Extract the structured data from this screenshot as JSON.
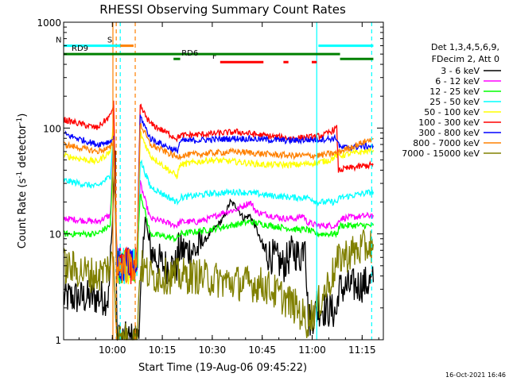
{
  "chart_data": {
    "type": "line",
    "title": "RHESSI Observing Summary Count Rates",
    "xlabel": "Start Time (19-Aug-06 09:45:22)",
    "ylabel_main": "Count Rate (s",
    "ylabel_sup1": "-1",
    "ylabel_mid": " detector",
    "ylabel_sup2": "-1",
    "ylabel_end": ")",
    "x_axis": {
      "start": "09:45:22",
      "range_minutes": [
        0,
        96
      ],
      "tick_minutes": [
        14.63,
        29.63,
        44.63,
        59.63,
        74.63,
        89.63
      ],
      "tick_labels": [
        "10:00",
        "10:15",
        "10:30",
        "10:45",
        "11:00",
        "11:15"
      ]
    },
    "y_axis": {
      "scale": "log",
      "ylim": [
        1,
        1000
      ],
      "tick_values": [
        1,
        10,
        100,
        1000
      ],
      "tick_labels": [
        "1",
        "10",
        "100",
        "1000"
      ]
    },
    "legend": {
      "placement": "right",
      "header1": "Det 1,3,4,5,6,9,",
      "header2": "FDecim 2, Att 0",
      "entries": [
        "3 - 6 keV",
        "6 - 12 keV",
        "12 - 25 keV",
        "25 - 50 keV",
        "50 - 100 keV",
        "100 - 300 keV",
        "300 - 800 keV",
        "800 - 7000 keV",
        "7000 - 15000 keV"
      ]
    },
    "series": [
      {
        "name": "3 - 6 keV",
        "color": "#000000",
        "points": [
          [
            0,
            2.5
          ],
          [
            12,
            2.5
          ],
          [
            13.5,
            2.5
          ],
          [
            14.5,
            10
          ],
          [
            15.5,
            60
          ],
          [
            16,
            1
          ],
          [
            22,
            1
          ],
          [
            23,
            2
          ],
          [
            24.5,
            15
          ],
          [
            26,
            7
          ],
          [
            30,
            5
          ],
          [
            34,
            5
          ],
          [
            34.5,
            7
          ],
          [
            36,
            7
          ],
          [
            40,
            7
          ],
          [
            44,
            10
          ],
          [
            48,
            14
          ],
          [
            50,
            20
          ],
          [
            52,
            18
          ],
          [
            54,
            14
          ],
          [
            56,
            15
          ],
          [
            58,
            11
          ],
          [
            60,
            7
          ],
          [
            63,
            6
          ],
          [
            66,
            5
          ],
          [
            69,
            7
          ],
          [
            71,
            6
          ],
          [
            72.5,
            9
          ],
          [
            73.5,
            1.5
          ],
          [
            77,
            2
          ],
          [
            82,
            1.8
          ],
          [
            82.5,
            3
          ],
          [
            93,
            3.5
          ]
        ]
      },
      {
        "name": "6 - 12 keV",
        "color": "#ff00ff",
        "points": [
          [
            0,
            14
          ],
          [
            10,
            13
          ],
          [
            14,
            15
          ],
          [
            15,
            70
          ],
          [
            16,
            5
          ],
          [
            22,
            5
          ],
          [
            23,
            30
          ],
          [
            26,
            14
          ],
          [
            30,
            13
          ],
          [
            34,
            12
          ],
          [
            35,
            13
          ],
          [
            40,
            13
          ],
          [
            44,
            14
          ],
          [
            48,
            16
          ],
          [
            52,
            17
          ],
          [
            56,
            20
          ],
          [
            58,
            16
          ],
          [
            62,
            15
          ],
          [
            66,
            14
          ],
          [
            70,
            14
          ],
          [
            72,
            15
          ],
          [
            73,
            13
          ],
          [
            76,
            12
          ],
          [
            82,
            12
          ],
          [
            83,
            14
          ],
          [
            93,
            15
          ]
        ]
      },
      {
        "name": "12 - 25 keV",
        "color": "#00ff00",
        "points": [
          [
            0,
            10
          ],
          [
            10,
            10
          ],
          [
            14,
            12
          ],
          [
            15,
            60
          ],
          [
            16,
            5
          ],
          [
            22,
            5
          ],
          [
            23,
            25
          ],
          [
            26,
            10
          ],
          [
            34,
            9
          ],
          [
            35,
            10
          ],
          [
            44,
            11
          ],
          [
            50,
            12
          ],
          [
            56,
            13
          ],
          [
            62,
            12
          ],
          [
            70,
            11
          ],
          [
            73,
            11
          ],
          [
            76,
            10
          ],
          [
            82,
            10
          ],
          [
            83,
            12
          ],
          [
            93,
            12
          ]
        ]
      },
      {
        "name": "25 - 50 keV",
        "color": "#00ffff",
        "points": [
          [
            0,
            32
          ],
          [
            10,
            28
          ],
          [
            14,
            35
          ],
          [
            15,
            90
          ],
          [
            16,
            5
          ],
          [
            22,
            5
          ],
          [
            23,
            50
          ],
          [
            26,
            28
          ],
          [
            34,
            20
          ],
          [
            35,
            22
          ],
          [
            44,
            24
          ],
          [
            52,
            25
          ],
          [
            58,
            24
          ],
          [
            62,
            23
          ],
          [
            70,
            22
          ],
          [
            74,
            22
          ],
          [
            76,
            20
          ],
          [
            82,
            20
          ],
          [
            83,
            22
          ],
          [
            93,
            25
          ]
        ]
      },
      {
        "name": "50 - 100 keV",
        "color": "#ffff00",
        "points": [
          [
            0,
            55
          ],
          [
            10,
            48
          ],
          [
            14,
            60
          ],
          [
            15,
            110
          ],
          [
            16,
            5
          ],
          [
            22,
            5
          ],
          [
            23,
            90
          ],
          [
            26,
            55
          ],
          [
            34,
            35
          ],
          [
            35,
            45
          ],
          [
            44,
            50
          ],
          [
            52,
            48
          ],
          [
            60,
            45
          ],
          [
            70,
            45
          ],
          [
            76,
            47
          ],
          [
            80,
            50
          ],
          [
            82,
            55
          ],
          [
            83,
            55
          ],
          [
            93,
            62
          ]
        ]
      },
      {
        "name": "100 - 300 keV",
        "color": "#ff0000",
        "points": [
          [
            0,
            120
          ],
          [
            10,
            100
          ],
          [
            14,
            130
          ],
          [
            15,
            170
          ],
          [
            16,
            5
          ],
          [
            22,
            5
          ],
          [
            23,
            160
          ],
          [
            26,
            110
          ],
          [
            34,
            80
          ],
          [
            35,
            85
          ],
          [
            44,
            88
          ],
          [
            52,
            92
          ],
          [
            60,
            85
          ],
          [
            68,
            80
          ],
          [
            74,
            82
          ],
          [
            78,
            85
          ],
          [
            82,
            100
          ],
          [
            82.5,
            40
          ],
          [
            86,
            42
          ],
          [
            93,
            45
          ]
        ]
      },
      {
        "name": "300 - 800 keV",
        "color": "#0000ff",
        "points": [
          [
            0,
            88
          ],
          [
            10,
            70
          ],
          [
            14,
            75
          ],
          [
            15,
            80
          ],
          [
            16,
            5
          ],
          [
            22,
            5
          ],
          [
            23,
            130
          ],
          [
            26,
            80
          ],
          [
            34,
            60
          ],
          [
            35,
            75
          ],
          [
            44,
            78
          ],
          [
            52,
            80
          ],
          [
            60,
            78
          ],
          [
            68,
            76
          ],
          [
            76,
            78
          ],
          [
            82,
            80
          ],
          [
            83,
            65
          ],
          [
            93,
            68
          ]
        ]
      },
      {
        "name": "800 - 7000 keV",
        "color": "#ff8000",
        "points": [
          [
            0,
            70
          ],
          [
            10,
            60
          ],
          [
            14,
            65
          ],
          [
            15,
            75
          ],
          [
            16,
            5
          ],
          [
            22,
            5
          ],
          [
            23,
            110
          ],
          [
            26,
            70
          ],
          [
            34,
            53
          ],
          [
            35,
            55
          ],
          [
            44,
            58
          ],
          [
            52,
            60
          ],
          [
            60,
            57
          ],
          [
            68,
            55
          ],
          [
            76,
            55
          ],
          [
            82,
            58
          ],
          [
            83,
            60
          ],
          [
            93,
            80
          ]
        ]
      },
      {
        "name": "7000 - 15000 keV",
        "color": "#808000",
        "points": [
          [
            0,
            5
          ],
          [
            10,
            4
          ],
          [
            14,
            5
          ],
          [
            15,
            6
          ],
          [
            16,
            1
          ],
          [
            22,
            1
          ],
          [
            23,
            5
          ],
          [
            26,
            4
          ],
          [
            34,
            4
          ],
          [
            40,
            4
          ],
          [
            50,
            3.5
          ],
          [
            60,
            3.3
          ],
          [
            66,
            2.5
          ],
          [
            70,
            2
          ],
          [
            73,
            1.5
          ],
          [
            76,
            2
          ],
          [
            82,
            5
          ],
          [
            83,
            6
          ],
          [
            93,
            8
          ]
        ]
      }
    ],
    "flags": [
      {
        "label": "S",
        "color": "#ff8000",
        "y_level": 600,
        "x_range": [
          15.5,
          21
        ]
      },
      {
        "label": "N",
        "color": "#00ffff",
        "y_level": 600,
        "x_range": [
          0,
          17
        ]
      },
      {
        "label": "",
        "color": "#00ffff",
        "y_level": 600,
        "x_range": [
          76.5,
          93
        ]
      },
      {
        "label": "F",
        "color": "#ff0000",
        "y_level": 420,
        "x_range": [
          47,
          60
        ]
      },
      {
        "label": "",
        "color": "#ff0000",
        "y_level": 420,
        "x_range": [
          66,
          67.5
        ]
      },
      {
        "label": "",
        "color": "#ff0000",
        "y_level": 420,
        "x_range": [
          74.5,
          76
        ]
      },
      {
        "label": "RD9",
        "color": "#008000",
        "y_level": 500,
        "x_range": [
          0,
          83
        ]
      },
      {
        "label": "RD6",
        "color": "#008000",
        "y_level": 450,
        "x_range": [
          33,
          35
        ]
      },
      {
        "label": "",
        "color": "#008000",
        "y_level": 450,
        "x_range": [
          83,
          93
        ]
      }
    ],
    "vlines": [
      {
        "x": 15.8,
        "color": "#ff8000",
        "style": "dashed"
      },
      {
        "x": 21.5,
        "color": "#ff8000",
        "style": "dashed"
      },
      {
        "x": 17,
        "color": "#00ffff",
        "style": "dashed"
      },
      {
        "x": 92.5,
        "color": "#00ffff",
        "style": "dashed"
      },
      {
        "x": 14.8,
        "color": "#ff8000",
        "style": "solid"
      },
      {
        "x": 76,
        "color": "#00ffff",
        "style": "solid"
      }
    ],
    "timestamp": "16-Oct-2021 16:46"
  }
}
